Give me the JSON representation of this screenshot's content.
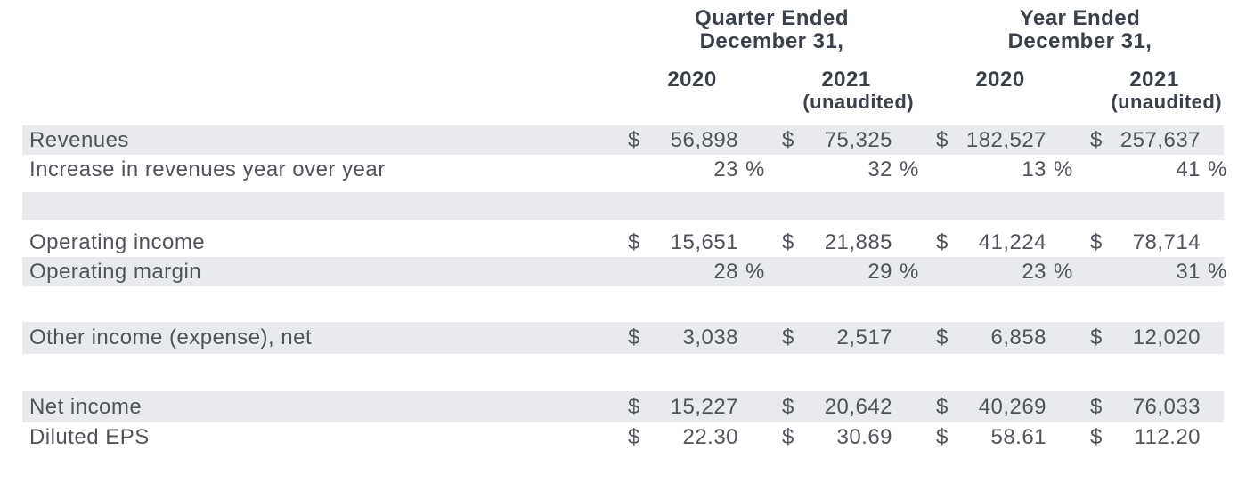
{
  "colors": {
    "shaded_row": "#e8eaed",
    "body_text": "#50545a",
    "header_text": "#3a4049"
  },
  "header": {
    "quarter_group": {
      "line1": "Quarter Ended",
      "line2": "December 31,"
    },
    "year_group": {
      "line1": "Year Ended",
      "line2": "December 31,"
    },
    "columns": [
      {
        "year": "2020",
        "note": ""
      },
      {
        "year": "2021",
        "note": "(unaudited)"
      },
      {
        "year": "2020",
        "note": ""
      },
      {
        "year": "2021",
        "note": "(unaudited)"
      }
    ]
  },
  "rows": [
    {
      "label": "Revenues",
      "unit": "currency",
      "shaded": true,
      "values": [
        "56,898",
        "75,325",
        "182,527",
        "257,637"
      ]
    },
    {
      "label": "Increase in revenues year over year",
      "unit": "percent",
      "shaded": false,
      "values": [
        "23",
        "32",
        "13",
        "41"
      ]
    },
    {
      "blank": true,
      "shaded": false,
      "h": 9
    },
    {
      "blank": true,
      "shaded": true,
      "h": 31
    },
    {
      "blank": true,
      "shaded": false,
      "h": 9
    },
    {
      "label": "Operating income",
      "unit": "currency",
      "shaded": false,
      "values": [
        "15,651",
        "21,885",
        "41,224",
        "78,714"
      ]
    },
    {
      "label": "Operating margin",
      "unit": "percent",
      "shaded": true,
      "values": [
        "28",
        "29",
        "23",
        "31"
      ]
    },
    {
      "blank": true,
      "shaded": false,
      "h": 40
    },
    {
      "label": "Other income (expense), net",
      "unit": "currency",
      "shaded": true,
      "h": 36,
      "values": [
        "3,038",
        "2,517",
        "6,858",
        "12,020"
      ]
    },
    {
      "blank": true,
      "shaded": false,
      "h": 42
    },
    {
      "label": "Net income",
      "unit": "currency",
      "shaded": true,
      "h": 35,
      "values": [
        "15,227",
        "20,642",
        "40,269",
        "76,033"
      ]
    },
    {
      "label": "Diluted EPS",
      "unit": "currency",
      "shaded": false,
      "values": [
        "22.30",
        "30.69",
        "58.61",
        "112.20"
      ]
    }
  ],
  "symbols": {
    "dollar": "$",
    "percent": "%"
  }
}
